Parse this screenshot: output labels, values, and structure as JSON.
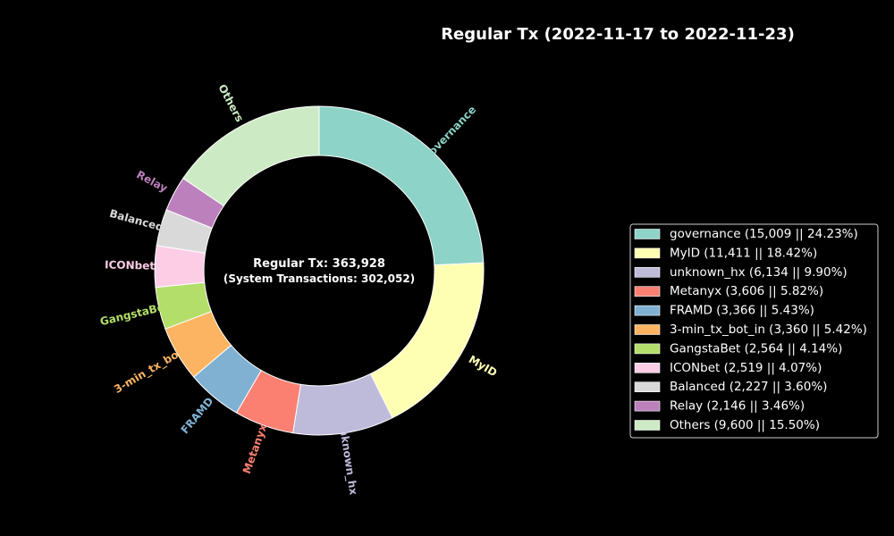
{
  "chart_data": {
    "type": "pie",
    "style": "donut",
    "title": "Regular Tx (2022-11-17 to 2022-11-23)",
    "center_text": {
      "main": "Regular Tx: 363,928",
      "sub": "(System Transactions: 302,052)"
    },
    "start": "top",
    "direction": "clockwise",
    "legend_position": "right",
    "slices": [
      {
        "label": "governance",
        "legend": "governance (15,009 || 24.23%)",
        "value": 15009,
        "percent": 24.23,
        "color": "#8dd3c7"
      },
      {
        "label": "MyID",
        "legend": "MyID (11,411 || 18.42%)",
        "value": 11411,
        "percent": 18.42,
        "color": "#ffffb3"
      },
      {
        "label": "unknown_hx",
        "legend": "unknown_hx (6,134 || 9.90%)",
        "value": 6134,
        "percent": 9.9,
        "color": "#bebada"
      },
      {
        "label": "Metanyx",
        "legend": "Metanyx (3,606 || 5.82%)",
        "value": 3606,
        "percent": 5.82,
        "color": "#fb8072"
      },
      {
        "label": "FRAMD",
        "legend": "FRAMD (3,366 || 5.43%)",
        "value": 3366,
        "percent": 5.43,
        "color": "#80b1d3"
      },
      {
        "label": "3-min_tx_bot_in",
        "legend": "3-min_tx_bot_in (3,360 || 5.42%)",
        "value": 3360,
        "percent": 5.42,
        "color": "#fdb462"
      },
      {
        "label": "GangstaBet",
        "legend": "GangstaBet (2,564 || 4.14%)",
        "value": 2564,
        "percent": 4.14,
        "color": "#b3de69"
      },
      {
        "label": "ICONbet",
        "legend": "ICONbet (2,519 || 4.07%)",
        "value": 2519,
        "percent": 4.07,
        "color": "#fccde5"
      },
      {
        "label": "Balanced",
        "legend": "Balanced (2,227 || 3.60%)",
        "value": 2227,
        "percent": 3.6,
        "color": "#d9d9d9"
      },
      {
        "label": "Relay",
        "legend": "Relay (2,146 || 3.46%)",
        "value": 2146,
        "percent": 3.46,
        "color": "#bc80bd"
      },
      {
        "label": "Others",
        "legend": "Others (9,600 || 15.50%)",
        "value": 9600,
        "percent": 15.5,
        "color": "#ccebc5"
      }
    ]
  }
}
